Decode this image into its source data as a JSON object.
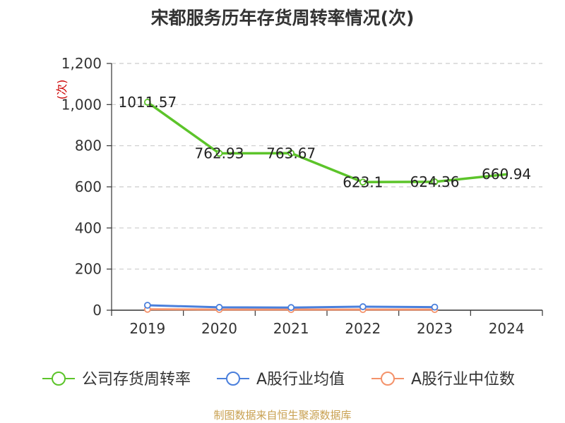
{
  "title": "宋都服务历年存货周转率情况(次)",
  "source": "制图数据来自恒生聚源数据库",
  "chart_data": {
    "type": "line",
    "title": "宋都服务历年存货周转率情况(次)",
    "ylabel": "(次)",
    "categories": [
      "2019",
      "2020",
      "2021",
      "2022",
      "2023",
      "2024"
    ],
    "ylim": [
      0,
      1200
    ],
    "yticks": [
      0,
      200,
      400,
      600,
      800,
      1000,
      1200
    ],
    "ytick_labels": [
      "0",
      "200",
      "400",
      "600",
      "800",
      "1,000",
      "1,200"
    ],
    "grid": true,
    "legend_position": "bottom",
    "series": [
      {
        "name": "公司存货周转率",
        "color": "#5cc42a",
        "values": [
          1011.57,
          762.93,
          763.67,
          623.1,
          624.36,
          660.94
        ],
        "labels": [
          "1011.57",
          "762.93",
          "763.67",
          "623.1",
          "624.36",
          "660.94"
        ],
        "show_markers": [
          true,
          true,
          true,
          true,
          true,
          false
        ]
      },
      {
        "name": "A股行业均值",
        "color": "#4a7fdc",
        "values": [
          24,
          14,
          13,
          17,
          15,
          null
        ]
      },
      {
        "name": "A股行业中位数",
        "color": "#f4926a",
        "values": [
          4,
          3,
          3,
          3,
          3,
          null
        ]
      }
    ]
  }
}
